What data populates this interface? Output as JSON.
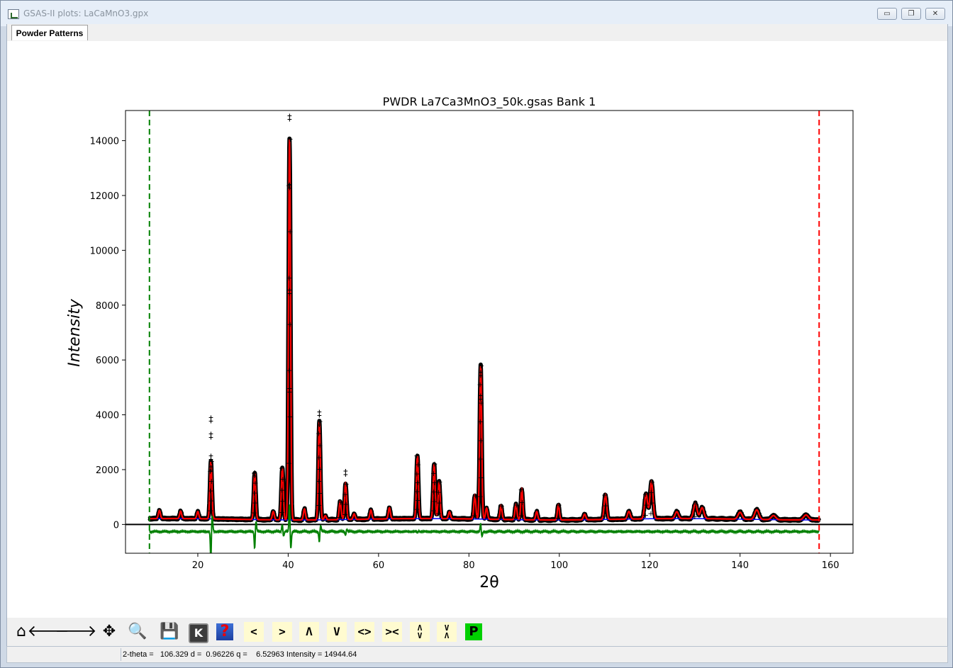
{
  "window": {
    "title": "GSAS-II plots: LaCaMnO3.gpx",
    "minimize": "▭",
    "maximize": "❐",
    "close": "✕"
  },
  "tabs": [
    {
      "label": "Powder Patterns"
    }
  ],
  "toolbar": {
    "buttons": [
      {
        "icon": "home-icon",
        "glyph": "⌂"
      },
      {
        "icon": "back-icon",
        "glyph": "🡐"
      },
      {
        "icon": "forward-icon",
        "glyph": "🡒"
      },
      {
        "icon": "pan-icon",
        "glyph": "✥"
      },
      {
        "icon": "zoom-icon",
        "glyph": "🔍"
      },
      {
        "icon": "save-icon",
        "glyph": "💾"
      },
      {
        "icon": "k-key-icon",
        "glyph": "K"
      },
      {
        "icon": "help-icon",
        "glyph": "?"
      },
      {
        "icon": "shift-left-icon",
        "glyph": "<"
      },
      {
        "icon": "shift-right-icon",
        "glyph": ">"
      },
      {
        "icon": "shift-up-icon",
        "glyph": "Λ"
      },
      {
        "icon": "shift-down-icon",
        "glyph": "V"
      },
      {
        "icon": "expand-x-icon",
        "glyph": "<>"
      },
      {
        "icon": "shrink-x-icon",
        "glyph": "><"
      },
      {
        "icon": "expand-y-icon",
        "glyph": "Λ\nV"
      },
      {
        "icon": "shrink-y-icon",
        "glyph": "V\nΛ"
      },
      {
        "icon": "publish-icon",
        "glyph": "P"
      }
    ]
  },
  "status": {
    "text": "2-theta =   106.329 d =  0.96226 q =    6.52963 Intensity = 14944.64"
  },
  "chart_data": {
    "type": "line",
    "title": "PWDR La7Ca3MnO3_50k.gsas Bank 1",
    "xlabel": "2θ",
    "ylabel": "Intensity",
    "xlim": [
      4,
      165
    ],
    "ylim": [
      -1050,
      15100
    ],
    "xticks": [
      20,
      40,
      60,
      80,
      100,
      120,
      140,
      160
    ],
    "yticks": [
      0,
      2000,
      4000,
      6000,
      8000,
      10000,
      12000,
      14000
    ],
    "grid": false,
    "limit_lines": {
      "lower": 9.3,
      "upper": 157.5
    },
    "background_level": 190,
    "difference_offset": -260,
    "colors": {
      "observed": "#000000",
      "calculated": "#ff0000",
      "background": "#0000ff",
      "difference": "#008000",
      "lower_limit": "#008000",
      "upper_limit": "#ff0000",
      "zero_line": "#000000"
    },
    "peaks": [
      {
        "x": 11.5,
        "y": 300,
        "w": 0.22
      },
      {
        "x": 16.2,
        "y": 270,
        "w": 0.22
      },
      {
        "x": 20.0,
        "y": 260,
        "w": 0.22
      },
      {
        "x": 22.9,
        "y": 2100,
        "w": 0.22
      },
      {
        "x": 32.6,
        "y": 1700,
        "w": 0.22
      },
      {
        "x": 36.7,
        "y": 300,
        "w": 0.22
      },
      {
        "x": 38.7,
        "y": 1900,
        "w": 0.22
      },
      {
        "x": 40.3,
        "y": 13900,
        "w": 0.22
      },
      {
        "x": 43.6,
        "y": 400,
        "w": 0.22
      },
      {
        "x": 46.9,
        "y": 3600,
        "w": 0.22
      },
      {
        "x": 48.2,
        "y": 150,
        "w": 0.22
      },
      {
        "x": 51.5,
        "y": 650,
        "w": 0.22
      },
      {
        "x": 52.7,
        "y": 1300,
        "w": 0.22
      },
      {
        "x": 54.6,
        "y": 200,
        "w": 0.22
      },
      {
        "x": 58.3,
        "y": 330,
        "w": 0.22
      },
      {
        "x": 62.4,
        "y": 400,
        "w": 0.22
      },
      {
        "x": 68.6,
        "y": 2300,
        "w": 0.22
      },
      {
        "x": 72.3,
        "y": 2000,
        "w": 0.22
      },
      {
        "x": 73.4,
        "y": 1350,
        "w": 0.22
      },
      {
        "x": 75.7,
        "y": 250,
        "w": 0.22
      },
      {
        "x": 81.3,
        "y": 850,
        "w": 0.22
      },
      {
        "x": 82.6,
        "y": 5600,
        "w": 0.22
      },
      {
        "x": 83.9,
        "y": 400,
        "w": 0.22
      },
      {
        "x": 87.1,
        "y": 500,
        "w": 0.22
      },
      {
        "x": 90.4,
        "y": 550,
        "w": 0.22
      },
      {
        "x": 91.7,
        "y": 1100,
        "w": 0.22
      },
      {
        "x": 95.0,
        "y": 300,
        "w": 0.22
      },
      {
        "x": 99.8,
        "y": 550,
        "w": 0.22
      },
      {
        "x": 105.6,
        "y": 200,
        "w": 0.22
      },
      {
        "x": 110.2,
        "y": 900,
        "w": 0.22
      },
      {
        "x": 115.4,
        "y": 280,
        "w": 0.22
      },
      {
        "x": 119.2,
        "y": 900,
        "w": 0.22
      },
      {
        "x": 120.4,
        "y": 1350,
        "w": 0.22
      },
      {
        "x": 126.0,
        "y": 250,
        "w": 0.22
      },
      {
        "x": 130.1,
        "y": 550,
        "w": 0.22
      },
      {
        "x": 131.6,
        "y": 400,
        "w": 0.22
      },
      {
        "x": 140.0,
        "y": 250,
        "w": 0.22
      },
      {
        "x": 143.7,
        "y": 350,
        "w": 0.22
      },
      {
        "x": 147.4,
        "y": 150,
        "w": 0.22
      },
      {
        "x": 154.6,
        "y": 180,
        "w": 0.22
      }
    ],
    "difference_features": [
      {
        "x": 22.9,
        "y": -1.3
      },
      {
        "x": 32.6,
        "y": -1.0
      },
      {
        "x": 38.7,
        "y": 0.4
      },
      {
        "x": 40.3,
        "y": 0.2
      },
      {
        "x": 46.9,
        "y": -0.3
      },
      {
        "x": 52.7,
        "y": -0.3
      },
      {
        "x": 68.6,
        "y": -0.05
      },
      {
        "x": 82.6,
        "y": 0.15
      }
    ],
    "observed_spikes": [
      {
        "x": 22.9,
        "y": [
          3850,
          3250,
          2450,
          2050
        ]
      },
      {
        "x": 40.3,
        "y": [
          14850,
          12350,
          8500,
          4900
        ]
      },
      {
        "x": 46.9,
        "y": [
          4050,
          3700
        ]
      },
      {
        "x": 52.7,
        "y": [
          1900
        ]
      },
      {
        "x": 32.6,
        "y": [
          1850
        ]
      },
      {
        "x": 82.6,
        "y": [
          5500,
          4650
        ]
      }
    ]
  }
}
